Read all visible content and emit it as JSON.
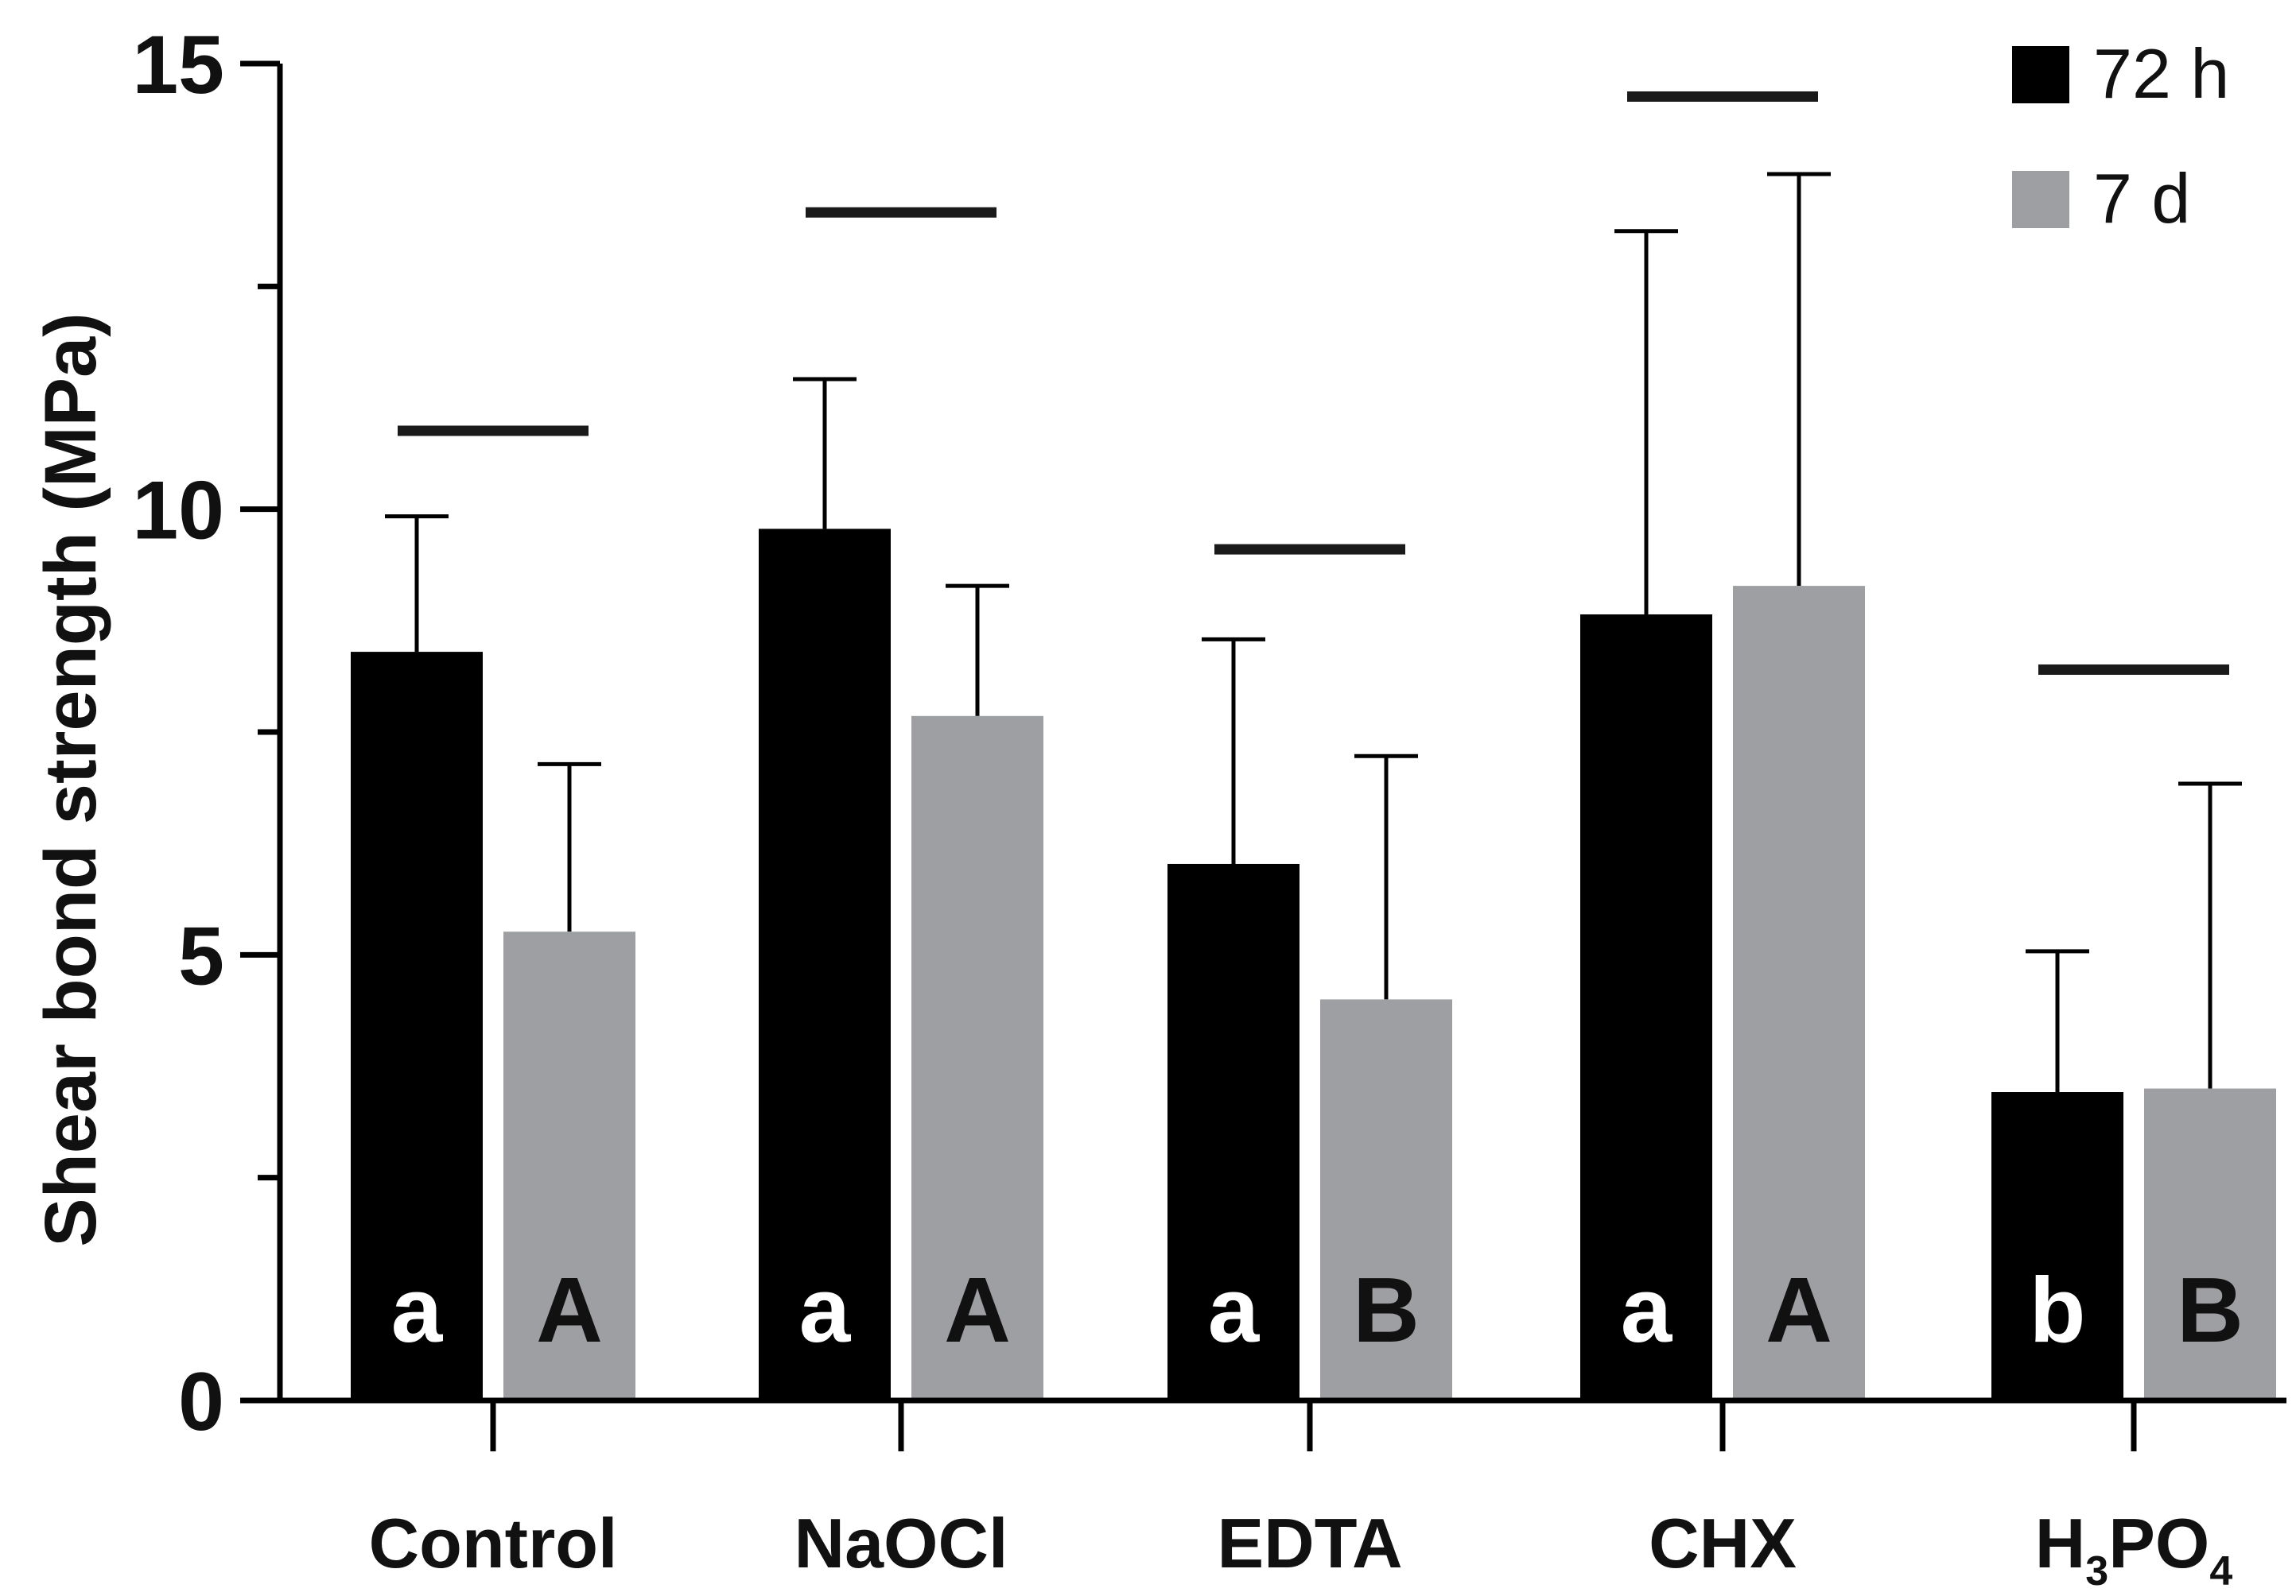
{
  "chart_data": {
    "type": "bar",
    "title": "",
    "xlabel": "",
    "ylabel": "Shear bond strength (MPa)",
    "ylim": [
      0,
      15
    ],
    "yticks": [
      "0",
      "5",
      "10",
      "15"
    ],
    "categories": [
      {
        "main": "Control",
        "parts": []
      },
      {
        "main": "NaOCl",
        "parts": []
      },
      {
        "main": "EDTA",
        "parts": []
      },
      {
        "main": "CHX",
        "parts": []
      },
      {
        "main": "H3PO4",
        "parts": [
          [
            "H",
            ""
          ],
          [
            "3",
            "sub"
          ],
          [
            "PO",
            ""
          ],
          [
            "4",
            "sub"
          ]
        ]
      }
    ],
    "series": [
      {
        "name": "72 h",
        "color": "#000000",
        "values": [
          8.4,
          9.78,
          6.02,
          8.82,
          3.46
        ],
        "errors": [
          1.52,
          1.68,
          2.52,
          4.3,
          1.58
        ],
        "letters": [
          "a",
          "a",
          "a",
          "a",
          "b"
        ],
        "letter_color": "#ffffff"
      },
      {
        "name": "7 d",
        "color": "#9e9fa2",
        "values": [
          5.26,
          7.68,
          4.5,
          9.14,
          3.5
        ],
        "errors": [
          1.88,
          1.46,
          2.73,
          4.62,
          3.42
        ],
        "letters": [
          "A",
          "A",
          "B",
          "A",
          "B"
        ],
        "letter_color": "#111111"
      }
    ],
    "significance_bars": [
      10.88,
      13.33,
      9.55,
      14.63,
      8.2
    ],
    "legend": {
      "position": "top-right"
    }
  }
}
